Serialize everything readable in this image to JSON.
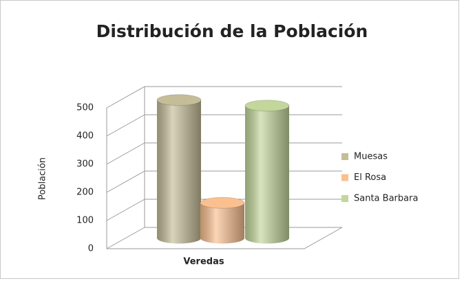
{
  "chart_data": {
    "type": "bar3d",
    "title": "Distribución de la Población",
    "y_label": "Población",
    "categories": [
      "Veredas"
    ],
    "series": [
      {
        "name": "Muesas",
        "color": "#c4bd97",
        "values": [
          490
        ]
      },
      {
        "name": "El Rosa",
        "color": "#fac090",
        "values": [
          125
        ]
      },
      {
        "name": "Santa Barbara",
        "color": "#c3d69b",
        "values": [
          470
        ]
      }
    ],
    "ylim": [
      0,
      500
    ],
    "yticks": [
      0,
      100,
      200,
      300,
      400,
      500
    ],
    "grid": true,
    "legend": "right"
  }
}
